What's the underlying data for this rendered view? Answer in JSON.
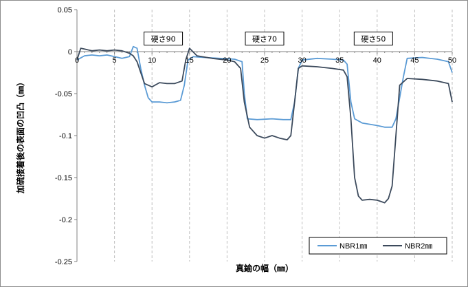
{
  "chart_data": {
    "type": "line",
    "xlabel": "真鍮の幅（㎜）",
    "ylabel": "加硫接着後の表面の凹凸（㎜）",
    "xlim": [
      0,
      50
    ],
    "ylim": [
      -0.25,
      0.05
    ],
    "x_ticks": [
      0,
      5,
      10,
      15,
      20,
      25,
      30,
      35,
      40,
      45,
      50
    ],
    "y_ticks": [
      0.05,
      0,
      -0.05,
      -0.1,
      -0.15,
      -0.2,
      -0.25
    ],
    "y_tick_labels": [
      "0.05",
      "0",
      "-0.05",
      "-0.1",
      "-0.15",
      "-0.2",
      "-0.25"
    ],
    "grid": "vertical dashed",
    "legend_position": "bottom-right",
    "annotations": [
      {
        "text": "硬さ90",
        "x": 11.5,
        "y": 0.016
      },
      {
        "text": "硬さ70",
        "x": 25,
        "y": 0.016
      },
      {
        "text": "硬さ50",
        "x": 39.5,
        "y": 0.016
      }
    ],
    "series": [
      {
        "name": "NBR1㎜",
        "color": "#5b9bd5",
        "points": [
          [
            0,
            -0.01
          ],
          [
            1,
            -0.005
          ],
          [
            2,
            -0.004
          ],
          [
            3,
            -0.005
          ],
          [
            4,
            -0.004
          ],
          [
            5,
            -0.006
          ],
          [
            6,
            -0.008
          ],
          [
            7,
            -0.006
          ],
          [
            7.5,
            0.006
          ],
          [
            8,
            0.004
          ],
          [
            8.5,
            -0.02
          ],
          [
            9,
            -0.04
          ],
          [
            9.5,
            -0.055
          ],
          [
            10,
            -0.06
          ],
          [
            11,
            -0.06
          ],
          [
            12,
            -0.061
          ],
          [
            13,
            -0.06
          ],
          [
            13.8,
            -0.058
          ],
          [
            14.3,
            -0.04
          ],
          [
            14.8,
            -0.01
          ],
          [
            15.5,
            -0.006
          ],
          [
            17,
            -0.007
          ],
          [
            19,
            -0.008
          ],
          [
            21,
            -0.009
          ],
          [
            22,
            -0.012
          ],
          [
            22.3,
            -0.05
          ],
          [
            22.7,
            -0.08
          ],
          [
            24,
            -0.081
          ],
          [
            26,
            -0.08
          ],
          [
            27.5,
            -0.081
          ],
          [
            28.5,
            -0.081
          ],
          [
            29,
            -0.06
          ],
          [
            29.5,
            -0.02
          ],
          [
            30,
            -0.01
          ],
          [
            32,
            -0.008
          ],
          [
            34,
            -0.009
          ],
          [
            35.5,
            -0.01
          ],
          [
            36,
            -0.015
          ],
          [
            36.5,
            -0.06
          ],
          [
            37,
            -0.08
          ],
          [
            38,
            -0.085
          ],
          [
            40,
            -0.088
          ],
          [
            41,
            -0.09
          ],
          [
            42,
            -0.09
          ],
          [
            42.5,
            -0.08
          ],
          [
            43.5,
            -0.03
          ],
          [
            44,
            -0.008
          ],
          [
            46,
            -0.007
          ],
          [
            48,
            -0.009
          ],
          [
            49.5,
            -0.012
          ],
          [
            50,
            -0.025
          ]
        ]
      },
      {
        "name": "NBR2㎜",
        "color": "#3c4a5c",
        "points": [
          [
            0,
            -0.01
          ],
          [
            0.5,
            0.004
          ],
          [
            1,
            0.003
          ],
          [
            2,
            0.001
          ],
          [
            3,
            0.002
          ],
          [
            4,
            0.001
          ],
          [
            5,
            0.002
          ],
          [
            6,
            0.001
          ],
          [
            7,
            -0.002
          ],
          [
            7.5,
            -0.005
          ],
          [
            8,
            -0.012
          ],
          [
            8.5,
            -0.025
          ],
          [
            9,
            -0.038
          ],
          [
            10,
            -0.042
          ],
          [
            11,
            -0.037
          ],
          [
            12,
            -0.038
          ],
          [
            13,
            -0.038
          ],
          [
            14,
            -0.035
          ],
          [
            14.5,
            -0.01
          ],
          [
            15,
            0.004
          ],
          [
            16,
            -0.005
          ],
          [
            18,
            -0.008
          ],
          [
            20,
            -0.01
          ],
          [
            21,
            -0.012
          ],
          [
            21.8,
            -0.02
          ],
          [
            22.3,
            -0.06
          ],
          [
            23,
            -0.09
          ],
          [
            24,
            -0.1
          ],
          [
            25,
            -0.103
          ],
          [
            26,
            -0.1
          ],
          [
            27,
            -0.103
          ],
          [
            28,
            -0.105
          ],
          [
            28.5,
            -0.1
          ],
          [
            29,
            -0.06
          ],
          [
            29.5,
            -0.02
          ],
          [
            30,
            -0.017
          ],
          [
            32,
            -0.018
          ],
          [
            34,
            -0.02
          ],
          [
            35.5,
            -0.022
          ],
          [
            36,
            -0.03
          ],
          [
            36.5,
            -0.08
          ],
          [
            37,
            -0.15
          ],
          [
            37.5,
            -0.172
          ],
          [
            38,
            -0.177
          ],
          [
            39,
            -0.176
          ],
          [
            40,
            -0.177
          ],
          [
            41,
            -0.18
          ],
          [
            41.5,
            -0.175
          ],
          [
            42,
            -0.16
          ],
          [
            42.5,
            -0.1
          ],
          [
            43,
            -0.04
          ],
          [
            44,
            -0.032
          ],
          [
            46,
            -0.033
          ],
          [
            48,
            -0.035
          ],
          [
            49.5,
            -0.038
          ],
          [
            50,
            -0.06
          ]
        ]
      }
    ]
  }
}
